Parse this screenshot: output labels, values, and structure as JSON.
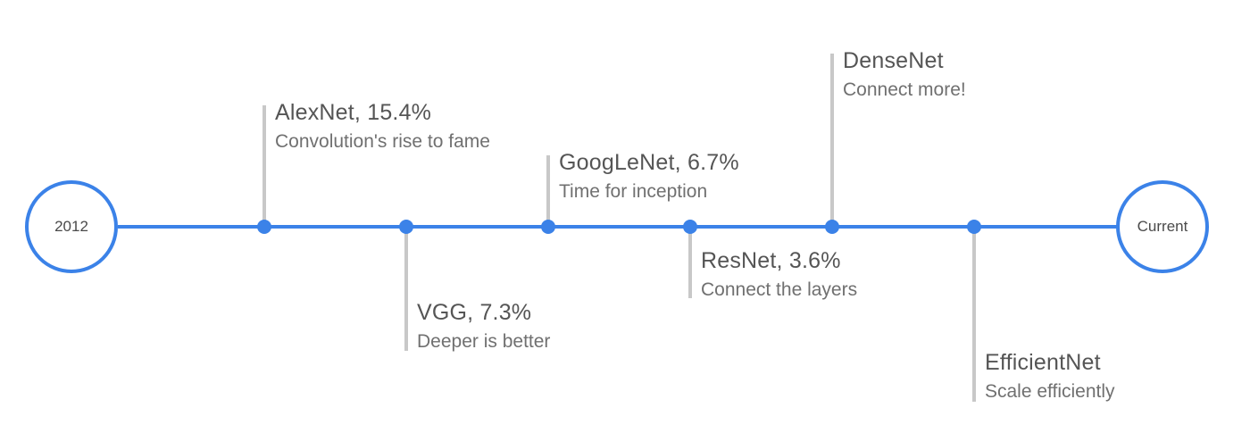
{
  "start_label": "2012",
  "end_label": "Current",
  "colors": {
    "line": "#3b82e8",
    "stem": "#c8c8c8",
    "name": "#555555",
    "desc": "#707070"
  },
  "milestones": [
    {
      "name": "AlexNet, 15.4%",
      "desc": "Convolution's rise to fame",
      "side": "above"
    },
    {
      "name": "VGG, 7.3%",
      "desc": "Deeper is better",
      "side": "below"
    },
    {
      "name": "GoogLeNet, 6.7%",
      "desc": "Time for inception",
      "side": "above"
    },
    {
      "name": "ResNet, 3.6%",
      "desc": "Connect the layers",
      "side": "below"
    },
    {
      "name": "DenseNet",
      "desc": "Connect more!",
      "side": "above"
    },
    {
      "name": "EfficientNet",
      "desc": "Scale efficiently",
      "side": "below"
    }
  ]
}
